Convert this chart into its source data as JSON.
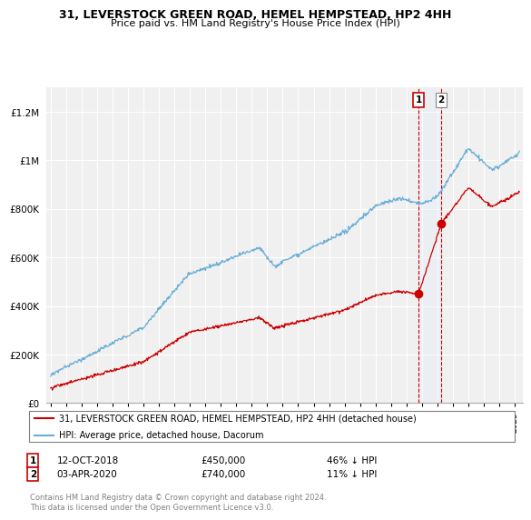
{
  "title_line1": "31, LEVERSTOCK GREEN ROAD, HEMEL HEMPSTEAD, HP2 4HH",
  "title_line2": "Price paid vs. HM Land Registry's House Price Index (HPI)",
  "ylabel_ticks": [
    "£0",
    "£200K",
    "£400K",
    "£600K",
    "£800K",
    "£1M",
    "£1.2M"
  ],
  "ytick_values": [
    0,
    200000,
    400000,
    600000,
    800000,
    1000000,
    1200000
  ],
  "ylim": [
    0,
    1300000
  ],
  "xlim_start": 1994.7,
  "xlim_end": 2025.5,
  "hpi_color": "#6baed6",
  "price_color": "#cc0000",
  "shade_color": "#ddeeff",
  "transaction1_date": 2018.79,
  "transaction1_price": 450000,
  "transaction1_label": "1",
  "transaction2_date": 2020.25,
  "transaction2_price": 740000,
  "transaction2_label": "2",
  "legend_line1": "31, LEVERSTOCK GREEN ROAD, HEMEL HEMPSTEAD, HP2 4HH (detached house)",
  "legend_line2": "HPI: Average price, detached house, Dacorum",
  "annotation1_date": "12-OCT-2018",
  "annotation1_price": "£450,000",
  "annotation1_hpi": "46% ↓ HPI",
  "annotation2_date": "03-APR-2020",
  "annotation2_price": "£740,000",
  "annotation2_hpi": "11% ↓ HPI",
  "footer": "Contains HM Land Registry data © Crown copyright and database right 2024.\nThis data is licensed under the Open Government Licence v3.0.",
  "background_color": "#f0f0f0"
}
